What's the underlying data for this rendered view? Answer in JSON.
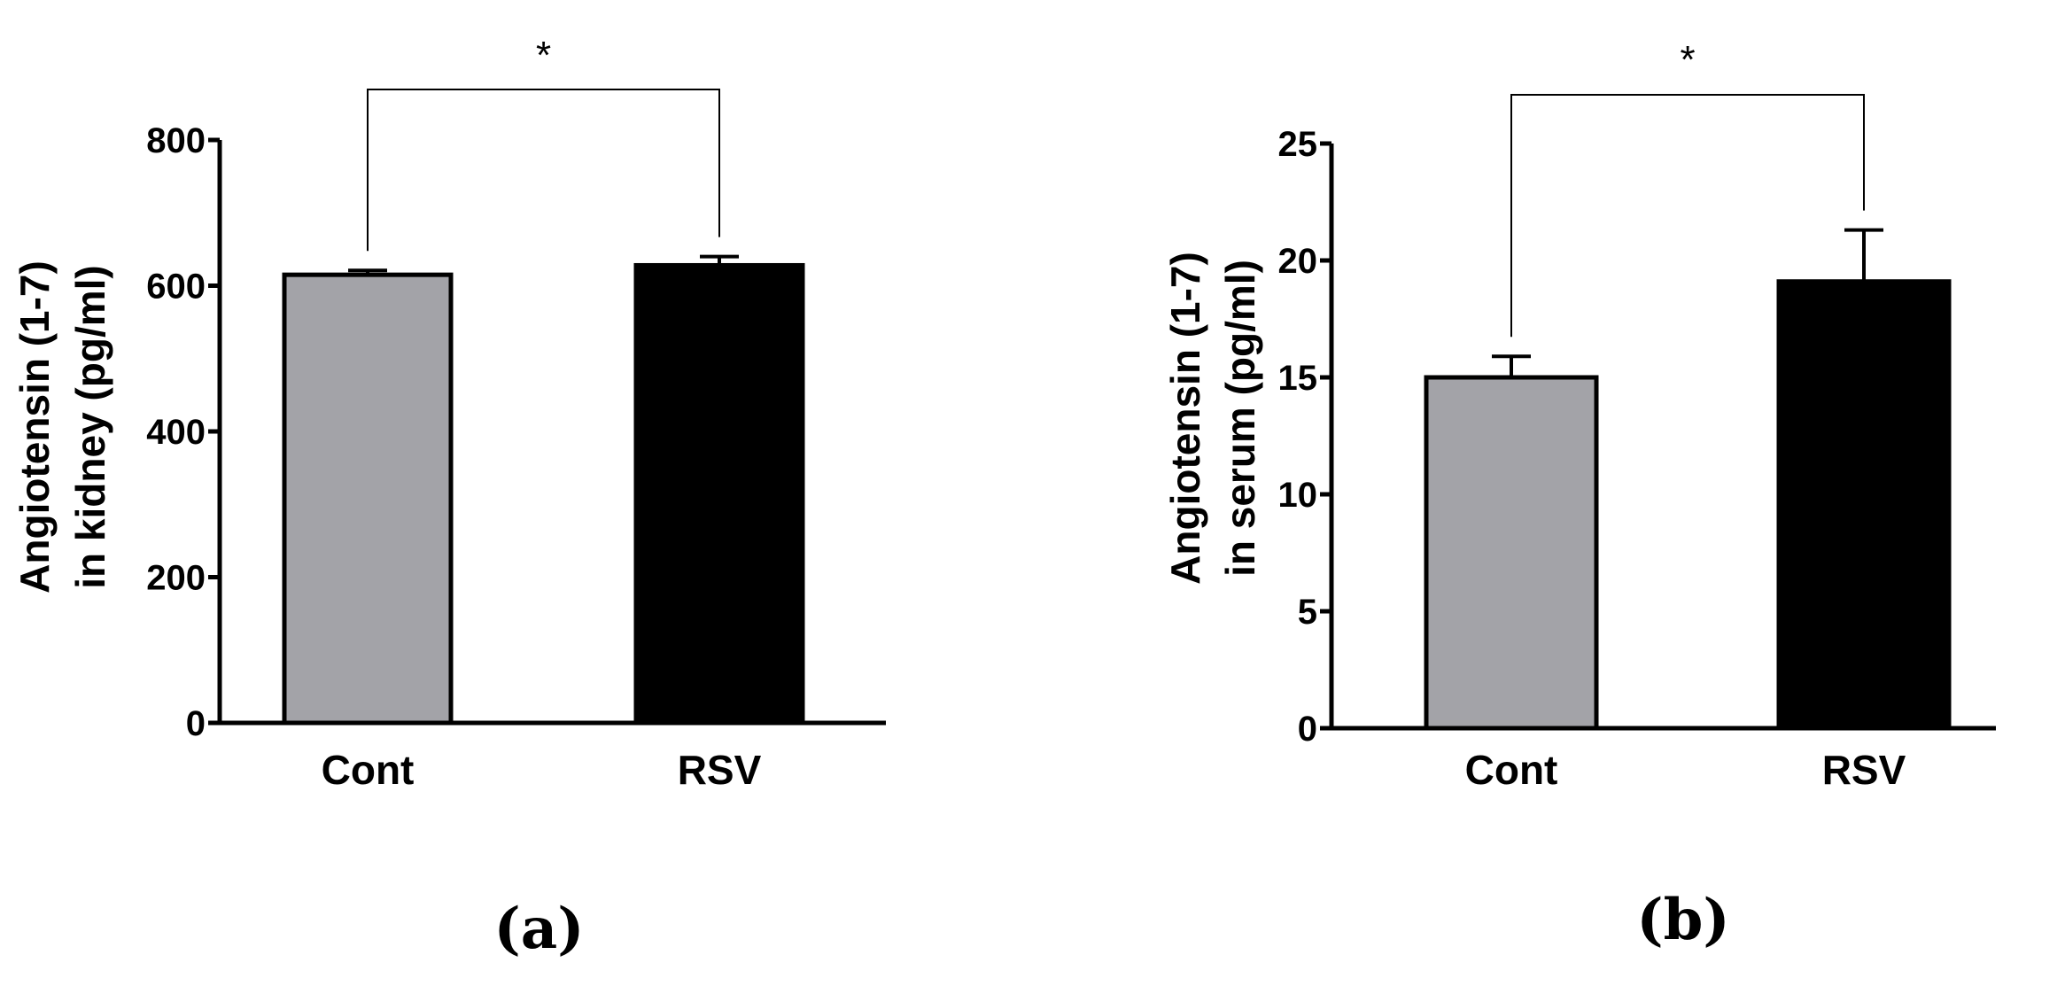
{
  "chart_data": [
    {
      "type": "bar",
      "panel_label": "(a)",
      "categories": [
        "Cont",
        "RSV"
      ],
      "values": [
        615,
        628
      ],
      "errors": [
        6,
        12
      ],
      "colors": [
        "#a3a3a8",
        "#000000"
      ],
      "ylabel_line1": "Angiotensin (1-7)",
      "ylabel_line2": "in kidney (pg/ml)",
      "ylim": [
        0,
        800
      ],
      "yticks": [
        0,
        200,
        400,
        600,
        800
      ],
      "significance": "*"
    },
    {
      "type": "bar",
      "panel_label": "(b)",
      "categories": [
        "Cont",
        "RSV"
      ],
      "values": [
        15.0,
        19.1
      ],
      "errors": [
        0.9,
        2.2
      ],
      "colors": [
        "#a3a3a8",
        "#000000"
      ],
      "ylabel_line1": "Angiotensin (1-7)",
      "ylabel_line2": "in serum (pg/ml)",
      "ylim": [
        0,
        25
      ],
      "yticks": [
        0,
        5,
        10,
        15,
        20,
        25
      ],
      "significance": "*"
    }
  ]
}
